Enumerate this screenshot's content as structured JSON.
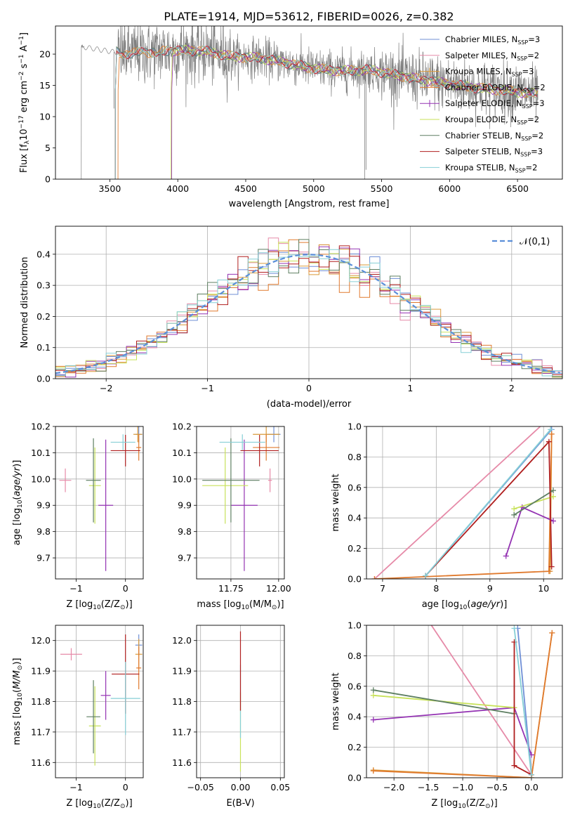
{
  "figure_title": "PLATE=1914, MJD=53612, FIBERID=0026, z=0.382",
  "colors": {
    "chabrier_miles": "#6f8fd6",
    "salpeter_miles": "#e68aa8",
    "kroupa_miles": "#d99a3a",
    "chabrier_elodie": "#e07a2e",
    "salpeter_elodie": "#9433b3",
    "kroupa_elodie": "#c8e25a",
    "chabrier_stelib": "#5e7f62",
    "salpeter_stelib": "#b01f1f",
    "kroupa_stelib": "#86cfd6",
    "observed": "#808080",
    "gaussian": "#5b8fd9"
  },
  "chart_data": [
    {
      "id": "spectrum",
      "type": "line",
      "xlabel": "wavelength [Angstrom, rest frame]",
      "ylabel_main": "Flux [f",
      "ylabel_lambda": "λ",
      "ylabel_rest": "10",
      "ylabel_exp1": "−17",
      "ylabel_mid": " erg cm",
      "ylabel_exp2": "−2",
      "ylabel_mid2": " s",
      "ylabel_exp3": "−1",
      "ylabel_end": " A",
      "ylabel_exp4": "−1",
      "ylabel_close": "]",
      "xlim": [
        3100,
        6830
      ],
      "ylim": [
        0,
        24.5
      ],
      "xticks": [
        3500,
        4000,
        4500,
        5000,
        5500,
        6000,
        6500
      ],
      "yticks": [
        0,
        5,
        10,
        15,
        20
      ],
      "observed_range": [
        3290,
        6650
      ],
      "model_continuum": [
        [
          3290,
          21.2
        ],
        [
          3400,
          20.8
        ],
        [
          3600,
          20.1
        ],
        [
          3800,
          20.3
        ],
        [
          4000,
          20.6
        ],
        [
          4200,
          20.5
        ],
        [
          4400,
          19.6
        ],
        [
          4600,
          19.4
        ],
        [
          4800,
          18.6
        ],
        [
          5000,
          17.7
        ],
        [
          5200,
          17.3
        ],
        [
          5400,
          17.5
        ],
        [
          5600,
          16.7
        ],
        [
          5800,
          15.9
        ],
        [
          6000,
          15.2
        ],
        [
          6200,
          14.6
        ],
        [
          6400,
          14.2
        ],
        [
          6650,
          13.6
        ]
      ],
      "legend": [
        {
          "label": "Chabrier MILES, N",
          "sub": "SSP",
          "suffix": "=3",
          "color_key": "chabrier_miles",
          "marker": false
        },
        {
          "label": "Salpeter MILES, N",
          "sub": "SSP",
          "suffix": "=2",
          "color_key": "salpeter_miles",
          "marker": false
        },
        {
          "label": "Kroupa MILES, N",
          "sub": "SSP",
          "suffix": "=3",
          "color_key": "kroupa_miles",
          "marker": true
        },
        {
          "label": "Chabrier ELODIE, N",
          "sub": "SSP",
          "suffix": "=2",
          "color_key": "chabrier_elodie",
          "marker": false
        },
        {
          "label": "Salpeter ELODIE, N",
          "sub": "SSP",
          "suffix": "=3",
          "color_key": "salpeter_elodie",
          "marker": true
        },
        {
          "label": "Kroupa ELODIE, N",
          "sub": "SSP",
          "suffix": "=2",
          "color_key": "kroupa_elodie",
          "marker": false
        },
        {
          "label": "Chabrier STELIB, N",
          "sub": "SSP",
          "suffix": "=2",
          "color_key": "chabrier_stelib",
          "marker": false
        },
        {
          "label": "Salpeter STELIB, N",
          "sub": "SSP",
          "suffix": "=3",
          "color_key": "salpeter_stelib",
          "marker": false
        },
        {
          "label": "Kroupa STELIB, N",
          "sub": "SSP",
          "suffix": "=2",
          "color_key": "kroupa_stelib",
          "marker": false
        }
      ],
      "model_starts": [
        {
          "color_key": "chabrier_elodie",
          "start": 3560
        },
        {
          "color_key": "kroupa_elodie",
          "start": 3950
        },
        {
          "color_key": "salpeter_elodie",
          "start": 3955
        }
      ]
    },
    {
      "id": "residual_histogram",
      "type": "histogram",
      "xlabel": "(data-model)/error",
      "ylabel": "Normed distribution",
      "xlim": [
        -2.5,
        2.5
      ],
      "ylim": [
        0,
        0.49
      ],
      "xticks": [
        -2,
        -1,
        0,
        1,
        2
      ],
      "yticks": [
        0.0,
        0.1,
        0.2,
        0.3,
        0.4
      ],
      "bin_width": 0.1,
      "legend_label": "𝒩(0,1)",
      "series_keys": [
        "chabrier_miles",
        "salpeter_miles",
        "kroupa_miles",
        "chabrier_elodie",
        "salpeter_elodie",
        "kroupa_elodie",
        "chabrier_stelib",
        "salpeter_stelib",
        "kroupa_stelib"
      ]
    },
    {
      "id": "age_vs_z",
      "type": "errorbar",
      "xlabel": "Z [log",
      "xlabel_sub": "10",
      "xlabel_rest": "(Z/Z",
      "xlabel_sun": "⊙",
      "xlabel_close": ")]",
      "ylabel": "age  [log10(age/yr)]",
      "xlim": [
        -1.42,
        0.36
      ],
      "ylim": [
        9.62,
        10.2
      ],
      "xticks": [
        -1,
        0
      ],
      "yticks": [
        9.7,
        9.8,
        9.9,
        10.0,
        10.1,
        10.2
      ],
      "points": [
        {
          "color_key": "chabrier_miles",
          "x": 0.27,
          "xerr": 0.07,
          "y": 10.17,
          "yerr": 0.03
        },
        {
          "color_key": "salpeter_miles",
          "x": -1.22,
          "xerr": 0.12,
          "y": 9.995,
          "yerr": 0.045
        },
        {
          "color_key": "kroupa_miles",
          "x": 0.25,
          "xerr": 0.09,
          "y": 10.17,
          "yerr": 0.03
        },
        {
          "color_key": "chabrier_elodie",
          "x": 0.27,
          "xerr": 0.05,
          "y": 10.12,
          "yerr": 0.05
        },
        {
          "color_key": "salpeter_elodie",
          "x": -0.4,
          "xerr": 0.15,
          "y": 9.9,
          "yerr": 0.25
        },
        {
          "color_key": "kroupa_elodie",
          "x": -0.62,
          "xerr": 0.12,
          "y": 9.975,
          "yerr": 0.145
        },
        {
          "color_key": "chabrier_stelib",
          "x": -0.65,
          "xerr": 0.15,
          "y": 9.995,
          "yerr": 0.16
        },
        {
          "color_key": "salpeter_stelib",
          "x": 0.0,
          "xerr": 0.3,
          "y": 10.108,
          "yerr": 0.06
        },
        {
          "color_key": "kroupa_stelib",
          "x": -0.05,
          "xerr": 0.25,
          "y": 10.14,
          "yerr": 0.03
        }
      ]
    },
    {
      "id": "age_vs_mass",
      "type": "errorbar",
      "xlabel": "mass [log",
      "xlabel_sub": "10",
      "xlabel_rest": "(M/M",
      "xlabel_sun": "⊙",
      "xlabel_close": ")]",
      "ylabel": "",
      "xlim": [
        11.57,
        12.03
      ],
      "ylim": [
        9.62,
        10.2
      ],
      "xticks": [
        11.75,
        12.0
      ],
      "xtick_labels": [
        "11.75",
        "12.00"
      ],
      "yticks": [
        9.7,
        9.8,
        9.9,
        10.0,
        10.1,
        10.2
      ],
      "points": [
        {
          "color_key": "chabrier_miles",
          "x": 11.975,
          "xerr": 0.035,
          "y": 10.17,
          "yerr": 0.03
        },
        {
          "color_key": "salpeter_miles",
          "x": 11.955,
          "xerr": 0.01,
          "y": 9.995,
          "yerr": 0.045
        },
        {
          "color_key": "kroupa_miles",
          "x": 11.935,
          "xerr": 0.07,
          "y": 10.17,
          "yerr": 0.03
        },
        {
          "color_key": "chabrier_elodie",
          "x": 11.935,
          "xerr": 0.07,
          "y": 10.12,
          "yerr": 0.05
        },
        {
          "color_key": "salpeter_elodie",
          "x": 11.82,
          "xerr": 0.07,
          "y": 9.9,
          "yerr": 0.25
        },
        {
          "color_key": "kroupa_elodie",
          "x": 11.72,
          "xerr": 0.12,
          "y": 9.975,
          "yerr": 0.145
        },
        {
          "color_key": "chabrier_stelib",
          "x": 11.75,
          "xerr": 0.15,
          "y": 9.995,
          "yerr": 0.16
        },
        {
          "color_key": "salpeter_stelib",
          "x": 11.9,
          "xerr": 0.1,
          "y": 10.108,
          "yerr": 0.06
        },
        {
          "color_key": "kroupa_stelib",
          "x": 11.81,
          "xerr": 0.12,
          "y": 10.14,
          "yerr": 0.03
        }
      ]
    },
    {
      "id": "weight_vs_age",
      "type": "line",
      "xlabel": "age  [log10(age/yr)]",
      "ylabel": "mass weight",
      "xlim": [
        6.7,
        10.35
      ],
      "ylim": [
        0,
        1
      ],
      "xticks": [
        7,
        8,
        9,
        10
      ],
      "yticks": [
        0.0,
        0.2,
        0.4,
        0.6,
        0.8,
        1.0
      ],
      "series": [
        {
          "color_key": "chabrier_miles",
          "points": [
            [
              7.8,
              0.02
            ],
            [
              10.15,
              0.98
            ]
          ]
        },
        {
          "color_key": "salpeter_miles",
          "points": [
            [
              6.85,
              0.0
            ],
            [
              10.0,
              1.02
            ]
          ]
        },
        {
          "color_key": "kroupa_miles",
          "points": [
            [
              10.12,
              0.05
            ],
            [
              10.15,
              0.95
            ]
          ]
        },
        {
          "color_key": "chabrier_elodie",
          "points": [
            [
              6.85,
              0.0
            ],
            [
              10.1,
              0.05
            ],
            [
              10.15,
              0.95
            ]
          ]
        },
        {
          "color_key": "salpeter_elodie",
          "points": [
            [
              9.3,
              0.15
            ],
            [
              9.6,
              0.47
            ],
            [
              10.18,
              0.38
            ]
          ]
        },
        {
          "color_key": "kroupa_elodie",
          "points": [
            [
              9.45,
              0.46
            ],
            [
              10.18,
              0.54
            ]
          ]
        },
        {
          "color_key": "chabrier_stelib",
          "points": [
            [
              9.45,
              0.42
            ],
            [
              10.18,
              0.58
            ]
          ]
        },
        {
          "color_key": "salpeter_stelib",
          "points": [
            [
              7.8,
              0.02
            ],
            [
              10.1,
              0.9
            ],
            [
              10.15,
              0.08
            ]
          ]
        },
        {
          "color_key": "kroupa_stelib",
          "points": [
            [
              7.8,
              0.02
            ],
            [
              10.13,
              0.98
            ]
          ]
        }
      ]
    },
    {
      "id": "mass_vs_z",
      "type": "errorbar",
      "xlabel": "Z [log",
      "xlabel_sub": "10",
      "xlabel_rest": "(Z/Z",
      "xlabel_sun": "⊙",
      "xlabel_close": ")]",
      "ylabel": "mass [log10(M/M⊙)]",
      "xlim": [
        -1.42,
        0.36
      ],
      "ylim": [
        11.55,
        12.05
      ],
      "xticks": [
        -1,
        0
      ],
      "yticks": [
        11.6,
        11.7,
        11.8,
        11.9,
        12.0
      ],
      "points": [
        {
          "color_key": "chabrier_miles",
          "x": 0.27,
          "xerr": 0.07,
          "y": 11.985,
          "yerr": 0.035
        },
        {
          "color_key": "salpeter_miles",
          "x": -1.1,
          "xerr": 0.22,
          "y": 11.955,
          "yerr": 0.02
        },
        {
          "color_key": "kroupa_miles",
          "x": 0.27,
          "xerr": 0.07,
          "y": 11.955,
          "yerr": 0.05
        },
        {
          "color_key": "chabrier_elodie",
          "x": 0.27,
          "xerr": 0.05,
          "y": 11.91,
          "yerr": 0.07
        },
        {
          "color_key": "salpeter_elodie",
          "x": -0.4,
          "xerr": 0.1,
          "y": 11.82,
          "yerr": 0.08
        },
        {
          "color_key": "kroupa_elodie",
          "x": -0.62,
          "xerr": 0.12,
          "y": 11.72,
          "yerr": 0.13
        },
        {
          "color_key": "chabrier_stelib",
          "x": -0.65,
          "xerr": 0.14,
          "y": 11.75,
          "yerr": 0.12
        },
        {
          "color_key": "salpeter_stelib",
          "x": 0.0,
          "xerr": 0.28,
          "y": 11.89,
          "yerr": 0.13
        },
        {
          "color_key": "kroupa_stelib",
          "x": 0.0,
          "xerr": 0.3,
          "y": 11.81,
          "yerr": 0.12
        }
      ]
    },
    {
      "id": "mass_vs_ebv",
      "type": "errorbar",
      "xlabel": "E(B-V)",
      "ylabel": "",
      "xlim": [
        -0.055,
        0.055
      ],
      "ylim": [
        11.55,
        12.05
      ],
      "xticks": [
        -0.05,
        0.0,
        0.05
      ],
      "xtick_labels": [
        "−0.05",
        "0.00",
        "0.05"
      ],
      "yticks": [
        11.6,
        11.7,
        11.8,
        11.9,
        12.0
      ],
      "points": [
        {
          "color_key": "kroupa_elodie",
          "x": 0.0,
          "xerr": 0.0,
          "y": 11.7,
          "yerr": 0.13
        },
        {
          "color_key": "kroupa_stelib",
          "x": 0.0,
          "xerr": 0.0,
          "y": 11.8,
          "yerr": 0.12
        },
        {
          "color_key": "salpeter_stelib",
          "x": 0.0,
          "xerr": 0.0,
          "y": 11.9,
          "yerr": 0.13
        }
      ]
    },
    {
      "id": "weight_vs_z",
      "type": "line",
      "xlabel": "Z [log",
      "xlabel_sub": "10",
      "xlabel_rest": "(Z/Z",
      "xlabel_sun": "⊙",
      "xlabel_close": ")]",
      "ylabel": "mass weight",
      "xlim": [
        -2.4,
        0.45
      ],
      "ylim": [
        0,
        1
      ],
      "xticks": [
        -2.0,
        -1.5,
        -1.0,
        -0.5,
        0.0
      ],
      "xtick_labels": [
        "−2.0",
        "−1.5",
        "−1.0",
        "−0.5",
        "0.0"
      ],
      "yticks": [
        0.0,
        0.2,
        0.4,
        0.6,
        0.8,
        1.0
      ],
      "series": [
        {
          "color_key": "chabrier_miles",
          "points": [
            [
              -0.2,
              0.98
            ],
            [
              0.0,
              0.02
            ]
          ]
        },
        {
          "color_key": "salpeter_miles",
          "points": [
            [
              -1.5,
              1.03
            ],
            [
              0.0,
              0.02
            ]
          ]
        },
        {
          "color_key": "kroupa_miles",
          "points": [
            [
              -2.3,
              0.05
            ],
            [
              0.0,
              0.0
            ],
            [
              0.3,
              0.95
            ]
          ]
        },
        {
          "color_key": "chabrier_elodie",
          "points": [
            [
              -2.3,
              0.045
            ],
            [
              0.0,
              0.0
            ],
            [
              0.3,
              0.95
            ]
          ]
        },
        {
          "color_key": "salpeter_elodie",
          "points": [
            [
              -2.3,
              0.38
            ],
            [
              -0.25,
              0.46
            ],
            [
              0.0,
              0.15
            ]
          ]
        },
        {
          "color_key": "kroupa_elodie",
          "points": [
            [
              -2.3,
              0.54
            ],
            [
              -0.25,
              0.46
            ]
          ]
        },
        {
          "color_key": "chabrier_stelib",
          "points": [
            [
              -2.3,
              0.575
            ],
            [
              -0.25,
              0.42
            ]
          ]
        },
        {
          "color_key": "salpeter_stelib",
          "points": [
            [
              -0.25,
              0.89
            ],
            [
              -0.25,
              0.08
            ],
            [
              0.0,
              0.02
            ]
          ]
        },
        {
          "color_key": "kroupa_stelib",
          "points": [
            [
              -0.25,
              0.98
            ],
            [
              0.0,
              0.02
            ]
          ]
        }
      ]
    }
  ]
}
